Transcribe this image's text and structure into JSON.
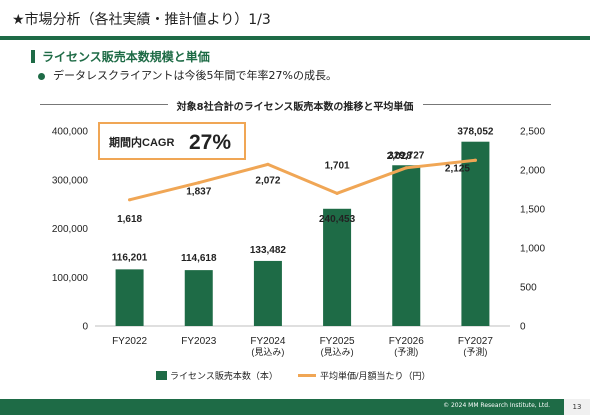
{
  "header": {
    "title": "★市場分析（各社実績・推計値より）1/3"
  },
  "section": {
    "heading": "ライセンス販売本数規模と単価",
    "bullet": "データレスクライアントは今後5年間で年率27%の成長。"
  },
  "callout": {
    "label": "期間内CAGR",
    "value": "27%"
  },
  "footer": {
    "copyright": "© 2024 MM Research Institute, Ltd.",
    "page_number": "13"
  },
  "colors": {
    "brand_green": "#1e6b46",
    "bar": "#1e6b46",
    "line": "#f0a655",
    "callout_border": "#f0a655"
  },
  "chart_data": {
    "type": "bar",
    "title": "対象8社合計のライセンス販売本数の推移と平均単価",
    "categories": [
      [
        "FY2022"
      ],
      [
        "FY2023"
      ],
      [
        "FY2024",
        "(見込み)"
      ],
      [
        "FY2025",
        "(見込み)"
      ],
      [
        "FY2026",
        "(予測)"
      ],
      [
        "FY2027",
        "(予測)"
      ]
    ],
    "series": [
      {
        "name": "ライセンス販売本数（本）",
        "type": "bar",
        "axis": "left",
        "values": [
          116201,
          114618,
          133482,
          240453,
          329727,
          378052
        ],
        "labels": [
          "116,201",
          "114,618",
          "133,482",
          "240,453",
          "329,727",
          "378,052"
        ]
      },
      {
        "name": "平均単価/月額当たり（円）",
        "type": "line",
        "axis": "right",
        "values": [
          1618,
          1837,
          2072,
          1701,
          2028,
          2125
        ],
        "labels": [
          "1,618",
          "1,837",
          "2,072",
          "1,701",
          "2,028",
          "2,125"
        ]
      }
    ],
    "ylim_left": [
      0,
      400000
    ],
    "yticks_left": [
      "0",
      "100,000",
      "200,000",
      "300,000",
      "400,000"
    ],
    "ylim_right": [
      0,
      2500
    ],
    "yticks_right": [
      "0",
      "500",
      "1,000",
      "1,500",
      "2,000",
      "2,500"
    ],
    "grid": false,
    "legend": "bottom"
  }
}
